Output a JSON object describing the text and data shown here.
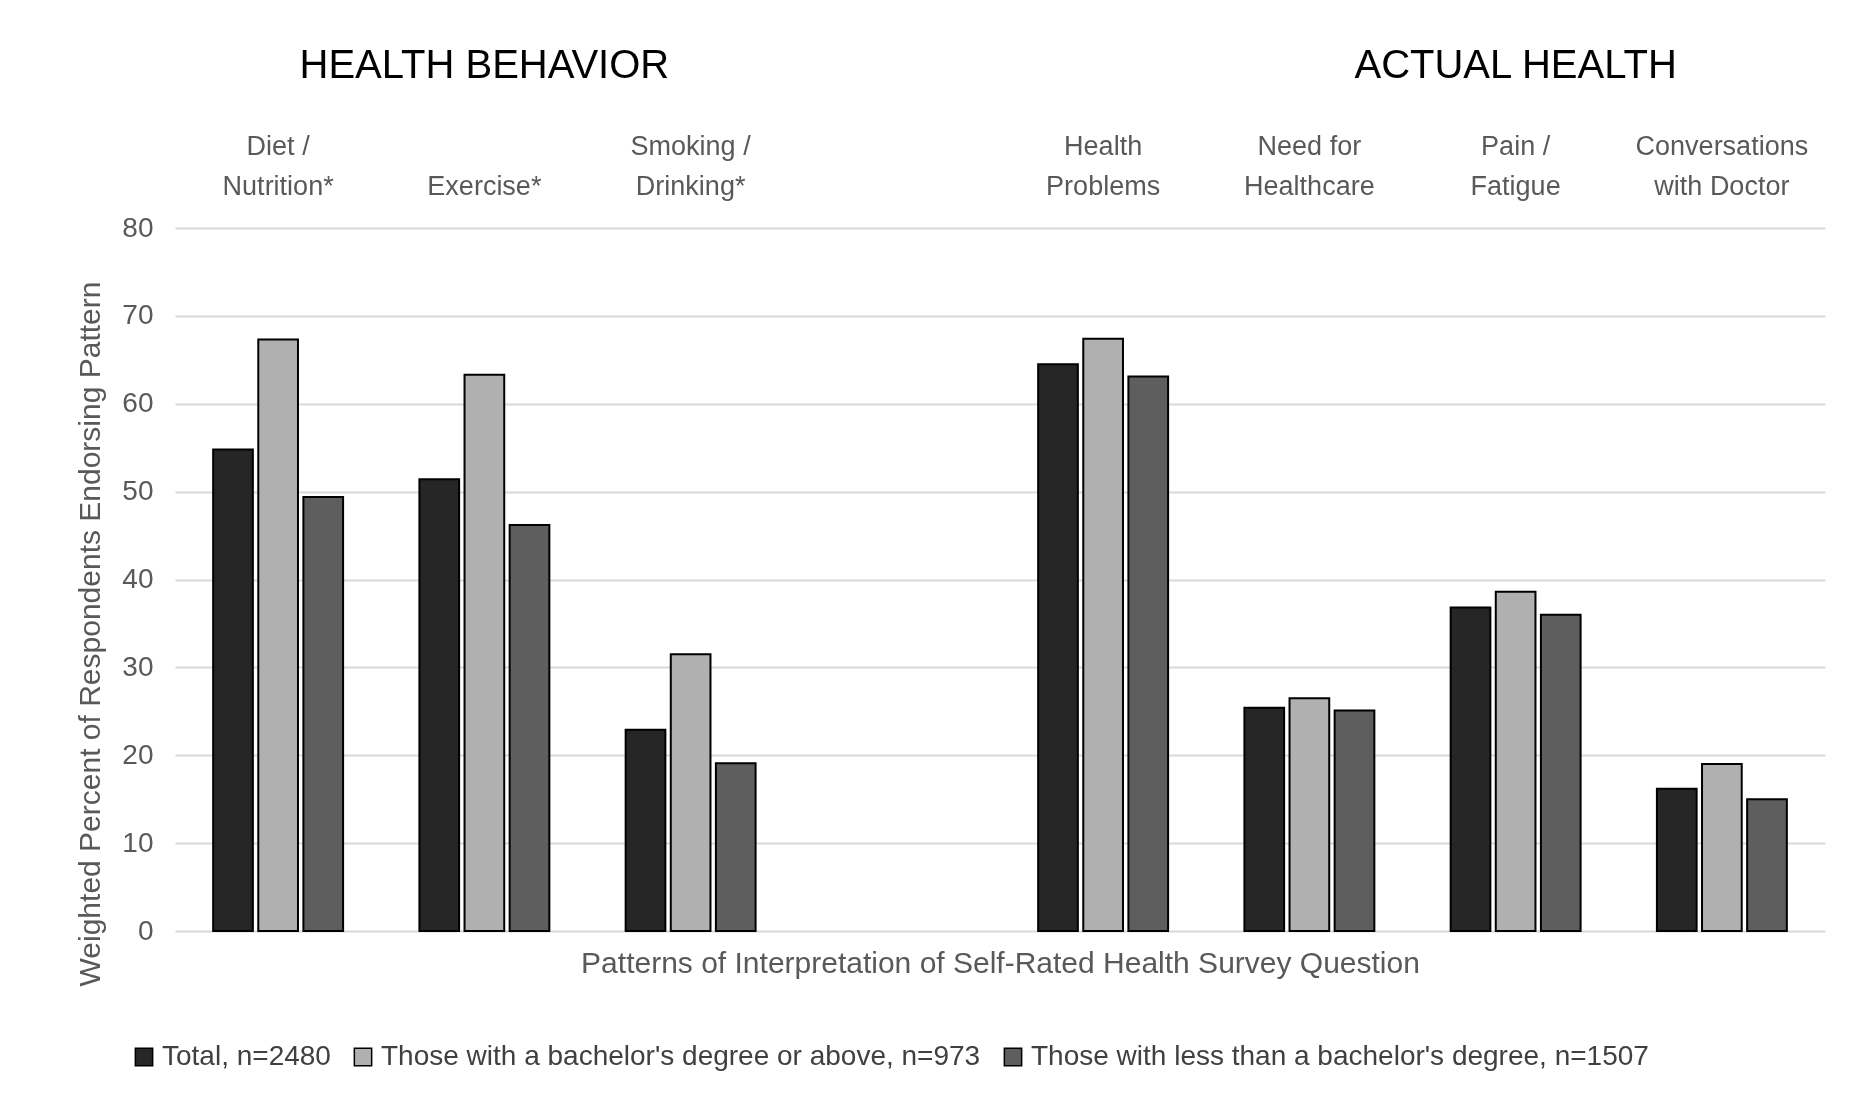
{
  "chart_data": {
    "type": "bar",
    "annotations": [
      "HEALTH BEHAVIOR",
      "ACTUAL HEALTH"
    ],
    "xlabel": "Patterns of Interpretation of Self-Rated Health Survey Question",
    "ylabel": "Weighted Percent of Respondents Endorsing Pattern",
    "categories": [
      "Diet / Nutrition*",
      "Exercise*",
      "Smoking / Drinking*",
      null,
      "Health Problems",
      "Need for Healthcare",
      "Pain / Fatigue",
      "Conversations with Doctor"
    ],
    "series": [
      {
        "name": "Total, n=2480",
        "color": "#262626",
        "values": [
          54.8,
          51.4,
          22.9,
          null,
          64.5,
          25.4,
          36.8,
          16.2
        ]
      },
      {
        "name": "Those with a bachelor's degree or above, n=973",
        "color": "#b0b0b0",
        "values": [
          67.3,
          63.3,
          31.5,
          null,
          67.4,
          26.5,
          38.6,
          19.0
        ]
      },
      {
        "name": "Those with less than a bachelor's degree, n=1507",
        "color": "#5e5e5e",
        "values": [
          49.4,
          46.2,
          19.1,
          null,
          63.1,
          25.1,
          36.0,
          15.0
        ]
      }
    ],
    "ylim": [
      0,
      80
    ],
    "yticks": [
      0,
      10,
      20,
      30,
      40,
      50,
      60,
      70,
      80
    ],
    "grid": "y",
    "legend": "bottom"
  }
}
